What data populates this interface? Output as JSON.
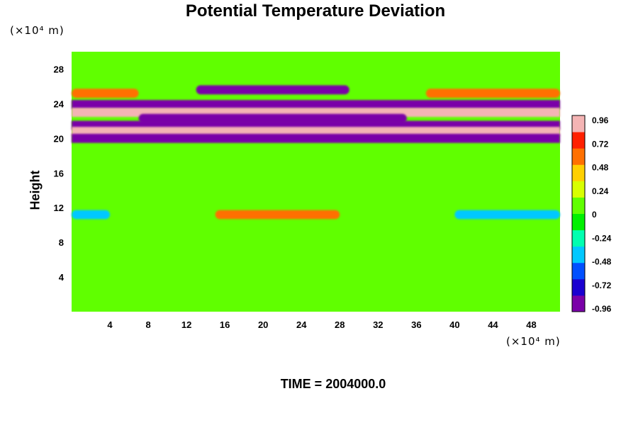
{
  "chart_data": {
    "type": "heatmap",
    "title": "Potential Temperature Deviation",
    "ylabel": "Height",
    "y_unit": "(×10⁴ m)",
    "x_unit": "(×10⁴ m)",
    "time_label": "TIME = 2004000.0",
    "x_ticks": [
      "4",
      "8",
      "12",
      "16",
      "20",
      "24",
      "28",
      "32",
      "36",
      "40",
      "44",
      "48"
    ],
    "y_ticks": [
      "4",
      "8",
      "12",
      "16",
      "20",
      "24",
      "28"
    ],
    "xlim": [
      0,
      51
    ],
    "ylim": [
      0,
      30
    ],
    "colorbar": {
      "min": -1.0,
      "max": 1.0,
      "labels": [
        "0.96",
        "0.72",
        "0.48",
        "0.24",
        "0",
        "-0.24",
        "-0.48",
        "-0.72",
        "-0.96"
      ],
      "colors": [
        "#7a00a8",
        "#1a00d0",
        "#0050ff",
        "#00c8ff",
        "#00ffb0",
        "#00f000",
        "#60ff00",
        "#d8ff00",
        "#ffd000",
        "#ff7000",
        "#ff2000",
        "#f4b4b4"
      ]
    },
    "field_features": [
      {
        "feature": "background",
        "value": 0.0
      },
      {
        "feature": "band",
        "y_center": 25.2,
        "x_range": [
          0,
          7
        ],
        "value": 0.7
      },
      {
        "feature": "band",
        "y_center": 25.2,
        "x_range": [
          37,
          51
        ],
        "value": 0.7
      },
      {
        "feature": "band",
        "y_center": 25.6,
        "x_range": [
          13,
          29
        ],
        "value": -0.96
      },
      {
        "feature": "band",
        "y_center": 23.9,
        "x_range": [
          0,
          51
        ],
        "value": -0.96
      },
      {
        "feature": "band",
        "y_center": 23.0,
        "x_range": [
          0,
          51
        ],
        "value": 0.96
      },
      {
        "feature": "band",
        "y_center": 22.3,
        "x_range": [
          7,
          35
        ],
        "value": -0.96
      },
      {
        "feature": "band",
        "y_center": 21.5,
        "x_range": [
          0,
          51
        ],
        "value": -0.96
      },
      {
        "feature": "band",
        "y_center": 20.8,
        "x_range": [
          0,
          51
        ],
        "value": 0.96
      },
      {
        "feature": "band",
        "y_center": 20.0,
        "x_range": [
          0,
          51
        ],
        "value": -0.96
      },
      {
        "feature": "band",
        "y_center": 11.2,
        "x_range": [
          15,
          28
        ],
        "value": 0.6
      },
      {
        "feature": "band",
        "y_center": 11.2,
        "x_range": [
          0,
          4
        ],
        "value": -0.4
      },
      {
        "feature": "band",
        "y_center": 11.2,
        "x_range": [
          40,
          51
        ],
        "value": -0.4
      }
    ]
  }
}
